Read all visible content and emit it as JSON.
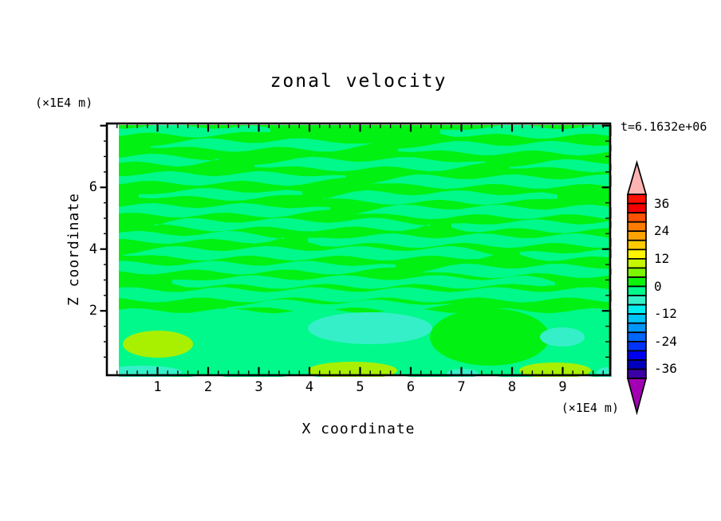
{
  "chart_data": {
    "type": "filled_contour",
    "title": "zonal velocity",
    "time_annotation": "t=6.1632e+06",
    "xlabel": "X coordinate",
    "ylabel": "Z coordinate",
    "x_unit": "(×1E4 m)",
    "y_unit": "(×1E4 m)",
    "x_axis": {
      "tick_labels": [
        "1",
        "2",
        "3",
        "4",
        "5",
        "6",
        "7",
        "8",
        "9"
      ],
      "tick_values": [
        1,
        2,
        3,
        4,
        5,
        6,
        7,
        8,
        9
      ],
      "minor_step": 0.2,
      "range": [
        0,
        9.94
      ]
    },
    "y_axis": {
      "tick_labels": [
        "2",
        "4",
        "6"
      ],
      "tick_values": [
        2,
        4,
        6
      ],
      "minor_step": 0.5,
      "range": [
        0,
        8.15
      ]
    },
    "colorbar": {
      "labels": [
        "36",
        "24",
        "12",
        "0",
        "-12",
        "-24",
        "-36"
      ],
      "label_values": [
        36,
        24,
        12,
        0,
        -12,
        -24,
        -36
      ],
      "level_min": -40,
      "level_max": 40,
      "level_step": 4,
      "segment_colors_top_to_bottom": [
        "#FF0F00",
        "#F40000",
        "#FF5200",
        "#FF7B00",
        "#FFA300",
        "#FFCB00",
        "#FFF400",
        "#C6F600",
        "#7BF600",
        "#0CF30C",
        "#00F98A",
        "#35EFC9",
        "#00EFEF",
        "#00C3F8",
        "#0095FA",
        "#0066FA",
        "#0034FA",
        "#0000F0",
        "#0000BC",
        "#3A00A5"
      ],
      "over_arrow_color": "#FFB3B3",
      "under_arrow_color": "#A300B3"
    },
    "field": {
      "colors": {
        "base": "#00F112",
        "band": "#00F98A",
        "aqua": "#35EFC9",
        "chartreuse": "#A8F000"
      },
      "bands": [
        [
          -50,
          205,
          9,
          11
        ],
        [
          418,
          680,
          10,
          12
        ],
        [
          55,
          335,
          27,
          11
        ],
        [
          365,
          680,
          31,
          12
        ],
        [
          -50,
          140,
          46,
          10
        ],
        [
          185,
          475,
          51,
          12
        ],
        [
          505,
          680,
          53,
          10
        ],
        [
          -50,
          300,
          69,
          12
        ],
        [
          332,
          680,
          73,
          12
        ],
        [
          40,
          245,
          89,
          10
        ],
        [
          272,
          565,
          93,
          12
        ],
        [
          -50,
          280,
          109,
          12
        ],
        [
          312,
          680,
          111,
          12
        ],
        [
          60,
          405,
          127,
          11
        ],
        [
          432,
          680,
          129,
          11
        ],
        [
          -50,
          222,
          143,
          10
        ],
        [
          252,
          680,
          147,
          12
        ],
        [
          20,
          485,
          163,
          12
        ],
        [
          518,
          680,
          165,
          10
        ],
        [
          -50,
          362,
          181,
          11
        ],
        [
          392,
          680,
          185,
          12
        ],
        [
          82,
          562,
          199,
          11
        ],
        [
          -50,
          680,
          215,
          13
        ],
        [
          150,
          432,
          229,
          10
        ],
        [
          -60,
          700,
          277,
          84
        ]
      ],
      "patches": [
        [
          "base",
          480,
          268,
          75,
          36
        ],
        [
          "aqua",
          330,
          257,
          78,
          20
        ],
        [
          "aqua",
          571,
          268,
          28,
          12
        ],
        [
          "chartreuse",
          64,
          277,
          44,
          17
        ],
        [
          "chartreuse",
          308,
          310,
          56,
          11
        ],
        [
          "chartreuse",
          562,
          310,
          45,
          10
        ],
        [
          "aqua",
          44,
          312,
          50,
          8
        ],
        [
          "aqua",
          446,
          314,
          20,
          6
        ],
        [
          "aqua",
          628,
          313,
          14,
          7
        ]
      ]
    }
  }
}
